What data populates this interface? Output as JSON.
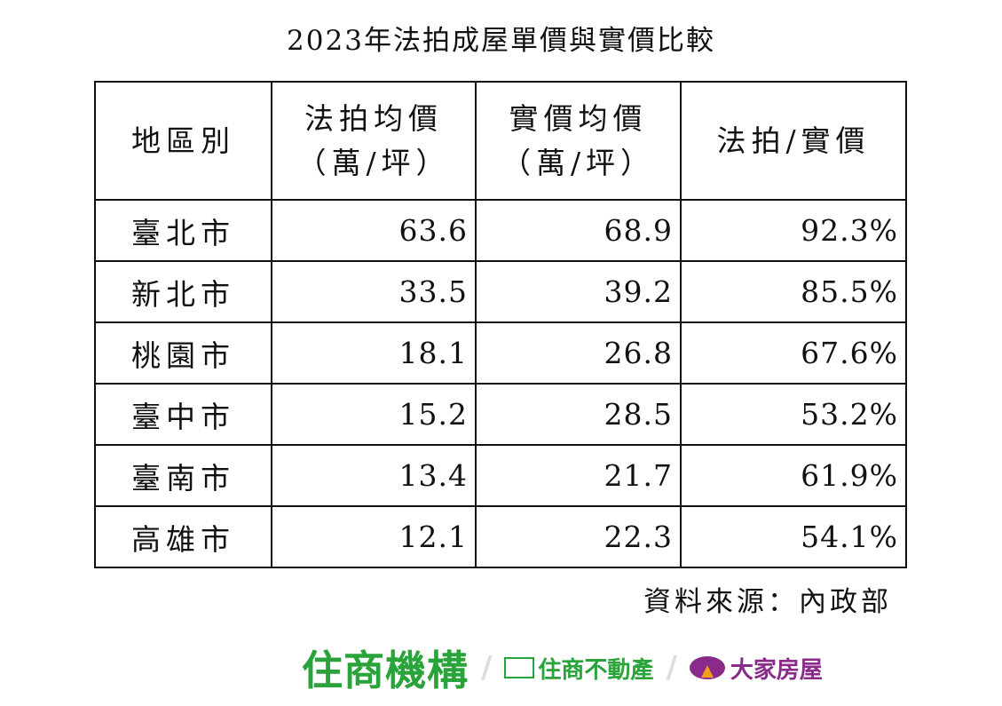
{
  "title": "2023年法拍成屋單價與實價比較",
  "chart_data": {
    "type": "table",
    "title": "2023年法拍成屋單價與實價比較",
    "columns": [
      "地區別",
      "法拍均價\n（萬/坪）",
      "實價均價\n（萬/坪）",
      "法拍/實價"
    ],
    "header": {
      "c0": "地區別",
      "c1_l1": "法拍均價",
      "c1_l2": "（萬/坪）",
      "c2_l1": "實價均價",
      "c2_l2": "（萬/坪）",
      "c3": "法拍/實價"
    },
    "rows": [
      {
        "region": "臺北市",
        "auction": "63.6",
        "market": "68.9",
        "ratio": "92.3%"
      },
      {
        "region": "新北市",
        "auction": "33.5",
        "market": "39.2",
        "ratio": "85.5%"
      },
      {
        "region": "桃園市",
        "auction": "18.1",
        "market": "26.8",
        "ratio": "67.6%"
      },
      {
        "region": "臺中市",
        "auction": "15.2",
        "market": "28.5",
        "ratio": "53.2%"
      },
      {
        "region": "臺南市",
        "auction": "13.4",
        "market": "21.7",
        "ratio": "61.9%"
      },
      {
        "region": "高雄市",
        "auction": "12.1",
        "market": "22.3",
        "ratio": "54.1%"
      }
    ]
  },
  "source": "資料來源：內政部",
  "logos": {
    "brand1": "住商機構",
    "brand2": "住商不動產",
    "brand3": "大家房屋",
    "green": "#2aa33a",
    "purple": "#8a2a8a"
  }
}
